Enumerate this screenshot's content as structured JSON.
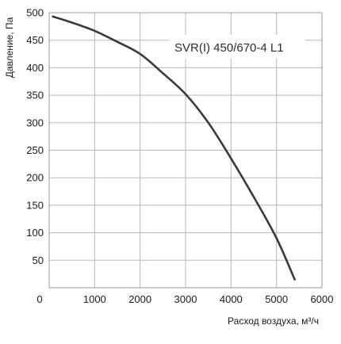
{
  "chart_data": {
    "type": "line",
    "title": "",
    "xlabel": "Расход воздуха, м³/ч",
    "ylabel": "Давление, Па",
    "annotation": "SVR(I) 450/670-4 L1",
    "xlim": [
      0,
      6000
    ],
    "ylim": [
      0,
      500
    ],
    "x_ticks": [
      0,
      1000,
      2000,
      3000,
      4000,
      5000,
      6000
    ],
    "y_ticks": [
      50,
      100,
      150,
      200,
      250,
      300,
      350,
      400,
      450,
      500
    ],
    "grid": true,
    "line_color": "#3a3a3a",
    "series": [
      {
        "x": [
          80,
          500,
          1000,
          1500,
          2000,
          2500,
          3000,
          3500,
          4000,
          4500,
          5000,
          5400
        ],
        "values": [
          493,
          482,
          467,
          447,
          425,
          390,
          352,
          300,
          235,
          165,
          90,
          15
        ]
      }
    ]
  }
}
